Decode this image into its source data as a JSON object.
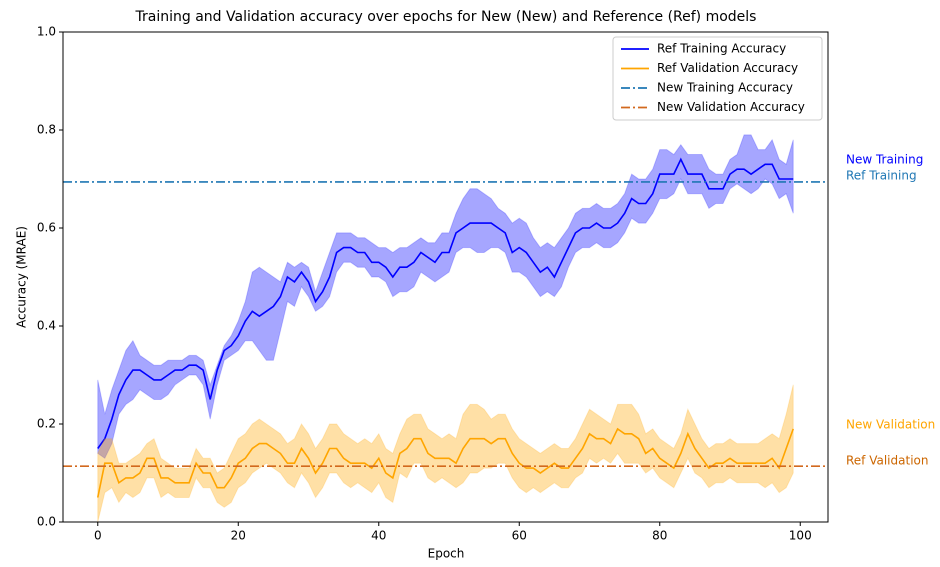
{
  "chart_data": {
    "type": "line",
    "title": "Training and Validation accuracy over epochs for New (New) and Reference (Ref) models",
    "xlabel": "Epoch",
    "ylabel": "Accuracy (MRAE)",
    "xlim": [
      -4.95,
      103.95
    ],
    "ylim": [
      0,
      1
    ],
    "xticks": [
      0,
      20,
      40,
      60,
      80,
      100
    ],
    "yticks": [
      {
        "value": 0,
        "label": "0.0"
      },
      {
        "value": 0.2,
        "label": "0.2"
      },
      {
        "value": 0.4,
        "label": "0.4"
      },
      {
        "value": 0.6,
        "label": "0.6"
      },
      {
        "value": 0.8,
        "label": "0.8"
      },
      {
        "value": 1,
        "label": "1.0"
      }
    ],
    "legend": "upper right",
    "x": [
      0,
      1,
      2,
      3,
      4,
      5,
      6,
      7,
      8,
      9,
      10,
      11,
      12,
      13,
      14,
      15,
      16,
      17,
      18,
      19,
      20,
      21,
      22,
      23,
      24,
      25,
      26,
      27,
      28,
      29,
      30,
      31,
      32,
      33,
      34,
      35,
      36,
      37,
      38,
      39,
      40,
      41,
      42,
      43,
      44,
      45,
      46,
      47,
      48,
      49,
      50,
      51,
      52,
      53,
      54,
      55,
      56,
      57,
      58,
      59,
      60,
      61,
      62,
      63,
      64,
      65,
      66,
      67,
      68,
      69,
      70,
      71,
      72,
      73,
      74,
      75,
      76,
      77,
      78,
      79,
      80,
      81,
      82,
      83,
      84,
      85,
      86,
      87,
      88,
      89,
      90,
      91,
      92,
      93,
      94,
      95,
      96,
      97,
      98,
      99
    ],
    "series": [
      {
        "name": "Ref Training Accuracy",
        "color": "#0000ff",
        "band_color": "#0000ff",
        "linestyle": "solid",
        "values": [
          0.15,
          0.17,
          0.21,
          0.26,
          0.29,
          0.31,
          0.31,
          0.3,
          0.29,
          0.29,
          0.3,
          0.31,
          0.31,
          0.32,
          0.32,
          0.31,
          0.25,
          0.31,
          0.35,
          0.36,
          0.38,
          0.41,
          0.43,
          0.42,
          0.43,
          0.44,
          0.46,
          0.5,
          0.49,
          0.51,
          0.49,
          0.45,
          0.47,
          0.5,
          0.55,
          0.56,
          0.56,
          0.55,
          0.55,
          0.53,
          0.53,
          0.52,
          0.5,
          0.52,
          0.52,
          0.53,
          0.55,
          0.54,
          0.53,
          0.55,
          0.55,
          0.59,
          0.6,
          0.61,
          0.61,
          0.61,
          0.61,
          0.6,
          0.59,
          0.55,
          0.56,
          0.55,
          0.53,
          0.51,
          0.52,
          0.5,
          0.53,
          0.56,
          0.59,
          0.6,
          0.6,
          0.61,
          0.6,
          0.6,
          0.61,
          0.63,
          0.66,
          0.65,
          0.65,
          0.67,
          0.71,
          0.71,
          0.71,
          0.74,
          0.71,
          0.71,
          0.71,
          0.68,
          0.68,
          0.68,
          0.71,
          0.72,
          0.72,
          0.71,
          0.72,
          0.73,
          0.73,
          0.7,
          0.7,
          0.7
        ],
        "upper": [
          0.29,
          0.22,
          0.27,
          0.31,
          0.35,
          0.37,
          0.34,
          0.33,
          0.32,
          0.32,
          0.33,
          0.33,
          0.33,
          0.34,
          0.34,
          0.33,
          0.28,
          0.32,
          0.36,
          0.38,
          0.41,
          0.45,
          0.51,
          0.52,
          0.51,
          0.5,
          0.49,
          0.53,
          0.52,
          0.53,
          0.52,
          0.47,
          0.51,
          0.55,
          0.59,
          0.59,
          0.59,
          0.58,
          0.58,
          0.57,
          0.56,
          0.56,
          0.55,
          0.56,
          0.56,
          0.57,
          0.58,
          0.57,
          0.57,
          0.59,
          0.59,
          0.63,
          0.66,
          0.68,
          0.68,
          0.67,
          0.66,
          0.64,
          0.63,
          0.61,
          0.62,
          0.61,
          0.58,
          0.56,
          0.57,
          0.56,
          0.58,
          0.6,
          0.63,
          0.64,
          0.64,
          0.65,
          0.64,
          0.64,
          0.65,
          0.67,
          0.71,
          0.7,
          0.7,
          0.72,
          0.76,
          0.76,
          0.75,
          0.77,
          0.75,
          0.75,
          0.75,
          0.72,
          0.71,
          0.71,
          0.74,
          0.75,
          0.79,
          0.79,
          0.76,
          0.76,
          0.78,
          0.74,
          0.73,
          0.78
        ],
        "lower": [
          0.14,
          0.13,
          0.16,
          0.22,
          0.24,
          0.25,
          0.27,
          0.26,
          0.25,
          0.25,
          0.26,
          0.28,
          0.29,
          0.3,
          0.3,
          0.28,
          0.21,
          0.28,
          0.33,
          0.34,
          0.35,
          0.37,
          0.37,
          0.35,
          0.33,
          0.33,
          0.39,
          0.45,
          0.44,
          0.48,
          0.46,
          0.43,
          0.44,
          0.46,
          0.51,
          0.53,
          0.53,
          0.52,
          0.52,
          0.5,
          0.5,
          0.49,
          0.46,
          0.47,
          0.47,
          0.48,
          0.51,
          0.5,
          0.49,
          0.5,
          0.51,
          0.55,
          0.56,
          0.56,
          0.55,
          0.55,
          0.56,
          0.56,
          0.55,
          0.51,
          0.51,
          0.5,
          0.48,
          0.46,
          0.47,
          0.46,
          0.48,
          0.52,
          0.55,
          0.56,
          0.56,
          0.57,
          0.56,
          0.56,
          0.57,
          0.59,
          0.62,
          0.61,
          0.61,
          0.63,
          0.66,
          0.66,
          0.67,
          0.7,
          0.67,
          0.67,
          0.67,
          0.64,
          0.65,
          0.65,
          0.68,
          0.69,
          0.68,
          0.67,
          0.68,
          0.7,
          0.69,
          0.66,
          0.67,
          0.63
        ]
      },
      {
        "name": "Ref Validation Accuracy",
        "color": "#ffa500",
        "band_color": "#ffa500",
        "linestyle": "solid",
        "values": [
          0.05,
          0.12,
          0.12,
          0.08,
          0.09,
          0.09,
          0.1,
          0.13,
          0.13,
          0.09,
          0.09,
          0.08,
          0.08,
          0.08,
          0.12,
          0.1,
          0.1,
          0.07,
          0.07,
          0.09,
          0.12,
          0.13,
          0.15,
          0.16,
          0.16,
          0.15,
          0.14,
          0.12,
          0.12,
          0.15,
          0.13,
          0.1,
          0.12,
          0.15,
          0.15,
          0.13,
          0.12,
          0.12,
          0.12,
          0.11,
          0.13,
          0.1,
          0.09,
          0.14,
          0.15,
          0.17,
          0.17,
          0.14,
          0.13,
          0.13,
          0.13,
          0.12,
          0.15,
          0.17,
          0.17,
          0.17,
          0.16,
          0.17,
          0.17,
          0.14,
          0.12,
          0.11,
          0.11,
          0.1,
          0.11,
          0.12,
          0.11,
          0.11,
          0.13,
          0.15,
          0.18,
          0.17,
          0.17,
          0.16,
          0.19,
          0.18,
          0.18,
          0.17,
          0.14,
          0.15,
          0.13,
          0.12,
          0.11,
          0.14,
          0.18,
          0.15,
          0.13,
          0.11,
          0.12,
          0.12,
          0.13,
          0.12,
          0.12,
          0.12,
          0.12,
          0.12,
          0.13,
          0.11,
          0.15,
          0.19
        ],
        "upper": [
          0.14,
          0.17,
          0.17,
          0.12,
          0.12,
          0.13,
          0.14,
          0.16,
          0.17,
          0.13,
          0.12,
          0.11,
          0.11,
          0.11,
          0.15,
          0.13,
          0.13,
          0.1,
          0.11,
          0.14,
          0.17,
          0.18,
          0.2,
          0.21,
          0.2,
          0.19,
          0.18,
          0.16,
          0.17,
          0.2,
          0.18,
          0.15,
          0.17,
          0.2,
          0.2,
          0.18,
          0.17,
          0.16,
          0.17,
          0.16,
          0.18,
          0.15,
          0.14,
          0.18,
          0.21,
          0.22,
          0.22,
          0.19,
          0.18,
          0.17,
          0.18,
          0.17,
          0.22,
          0.24,
          0.24,
          0.23,
          0.21,
          0.22,
          0.22,
          0.19,
          0.17,
          0.16,
          0.15,
          0.14,
          0.15,
          0.16,
          0.15,
          0.15,
          0.17,
          0.2,
          0.23,
          0.22,
          0.21,
          0.2,
          0.24,
          0.24,
          0.24,
          0.22,
          0.18,
          0.19,
          0.17,
          0.16,
          0.15,
          0.18,
          0.23,
          0.2,
          0.17,
          0.15,
          0.16,
          0.16,
          0.17,
          0.16,
          0.16,
          0.16,
          0.16,
          0.17,
          0.18,
          0.17,
          0.22,
          0.28
        ],
        "lower": [
          0.0,
          0.06,
          0.07,
          0.04,
          0.06,
          0.05,
          0.06,
          0.09,
          0.09,
          0.05,
          0.06,
          0.05,
          0.05,
          0.05,
          0.09,
          0.07,
          0.07,
          0.04,
          0.03,
          0.04,
          0.07,
          0.08,
          0.1,
          0.11,
          0.12,
          0.11,
          0.1,
          0.08,
          0.07,
          0.1,
          0.08,
          0.05,
          0.07,
          0.1,
          0.1,
          0.08,
          0.07,
          0.08,
          0.07,
          0.06,
          0.08,
          0.05,
          0.04,
          0.1,
          0.09,
          0.12,
          0.12,
          0.09,
          0.08,
          0.09,
          0.08,
          0.07,
          0.08,
          0.1,
          0.1,
          0.11,
          0.11,
          0.12,
          0.12,
          0.09,
          0.07,
          0.06,
          0.07,
          0.06,
          0.07,
          0.08,
          0.07,
          0.07,
          0.09,
          0.1,
          0.13,
          0.12,
          0.13,
          0.12,
          0.14,
          0.12,
          0.12,
          0.12,
          0.1,
          0.11,
          0.09,
          0.08,
          0.07,
          0.1,
          0.13,
          0.1,
          0.09,
          0.07,
          0.08,
          0.08,
          0.09,
          0.08,
          0.08,
          0.08,
          0.08,
          0.07,
          0.08,
          0.06,
          0.07,
          0.1
        ]
      },
      {
        "name": "New Training Accuracy",
        "color": "#1f77b4",
        "linestyle": "dashdot",
        "value": 0.694
      },
      {
        "name": "New Validation Accuracy",
        "color": "#d2691e",
        "linestyle": "dashdot",
        "value": 0.114
      }
    ],
    "annotations": [
      {
        "text": "New Training",
        "color": "#0000ff"
      },
      {
        "text": "Ref Training",
        "color": "#1f77b4"
      },
      {
        "text": "New Validation",
        "color": "#ffa500"
      },
      {
        "text": "Ref Validation",
        "color": "#cc6600"
      }
    ]
  }
}
